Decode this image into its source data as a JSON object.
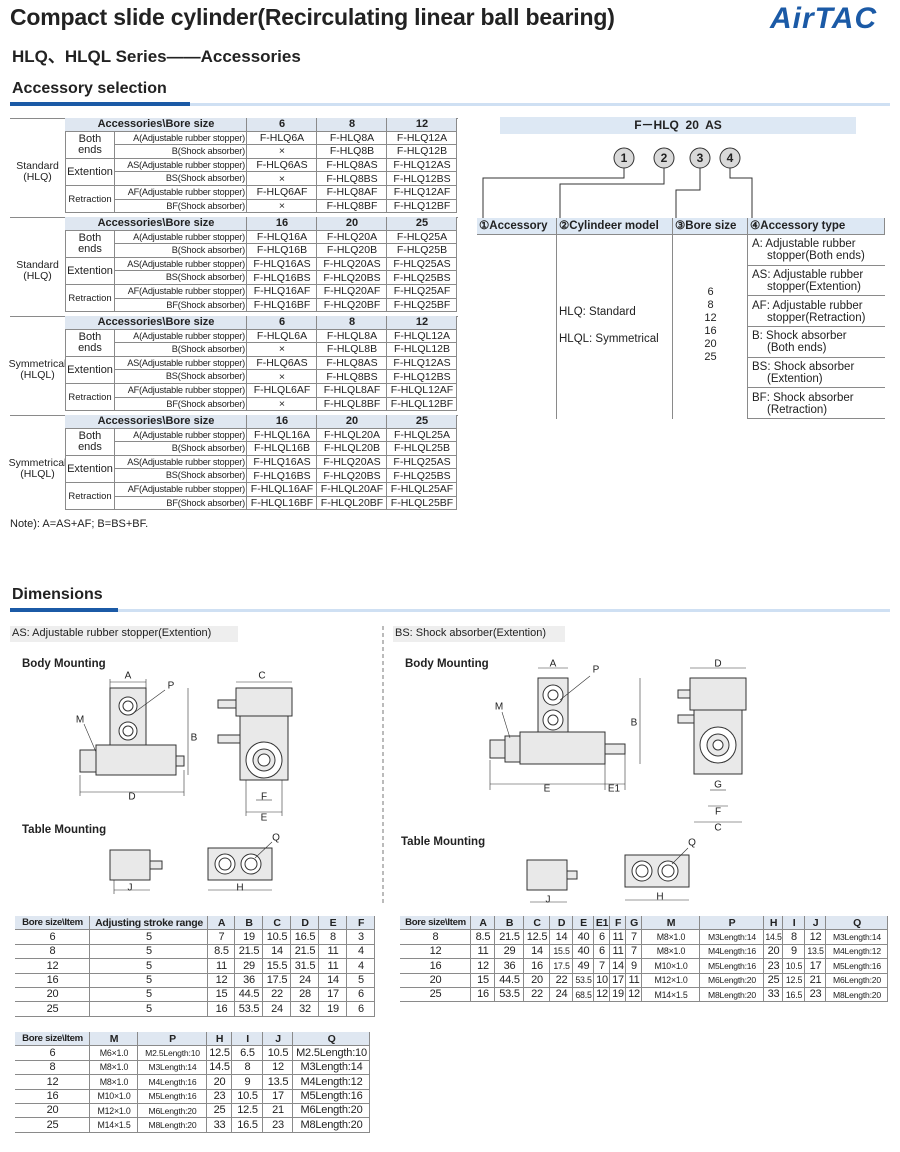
{
  "header": {
    "title": "Compact slide cylinder(Recirculating linear ball bearing)",
    "subtitle": "HLQ、HLQL Series——Accessories",
    "logo": "AirTAC"
  },
  "selection": {
    "heading": "Accessory selection",
    "blocks": [
      {
        "label": [
          "Standard",
          "(HLQ)"
        ],
        "header": [
          "Accessories\\Bore size",
          "6",
          "8",
          "12"
        ],
        "groups": [
          {
            "name": "Both ends",
            "rows": [
              [
                "A(Adjustable rubber stopper)",
                "F-HLQ6A",
                "F-HLQ8A",
                "F-HLQ12A"
              ],
              [
                "B(Shock absorber)",
                "×",
                "F-HLQ8B",
                "F-HLQ12B"
              ]
            ]
          },
          {
            "name": "Extention",
            "rows": [
              [
                "AS(Adjustable rubber stopper)",
                "F-HLQ6AS",
                "F-HLQ8AS",
                "F-HLQ12AS"
              ],
              [
                "BS(Shock absorber)",
                "×",
                "F-HLQ8BS",
                "F-HLQ12BS"
              ]
            ]
          },
          {
            "name": "Retraction",
            "rows": [
              [
                "AF(Adjustable rubber stopper)",
                "F-HLQ6AF",
                "F-HLQ8AF",
                "F-HLQ12AF"
              ],
              [
                "BF(Shock absorber)",
                "×",
                "F-HLQ8BF",
                "F-HLQ12BF"
              ]
            ]
          }
        ]
      },
      {
        "label": [
          "Standard",
          "(HLQ)"
        ],
        "header": [
          "Accessories\\Bore size",
          "16",
          "20",
          "25"
        ],
        "groups": [
          {
            "name": "Both ends",
            "rows": [
              [
                "A(Adjustable rubber stopper)",
                "F-HLQ16A",
                "F-HLQ20A",
                "F-HLQ25A"
              ],
              [
                "B(Shock absorber)",
                "F-HLQ16B",
                "F-HLQ20B",
                "F-HLQ25B"
              ]
            ]
          },
          {
            "name": "Extention",
            "rows": [
              [
                "AS(Adjustable rubber stopper)",
                "F-HLQ16AS",
                "F-HLQ20AS",
                "F-HLQ25AS"
              ],
              [
                "BS(Shock absorber)",
                "F-HLQ16BS",
                "F-HLQ20BS",
                "F-HLQ25BS"
              ]
            ]
          },
          {
            "name": "Retraction",
            "rows": [
              [
                "AF(Adjustable rubber stopper)",
                "F-HLQ16AF",
                "F-HLQ20AF",
                "F-HLQ25AF"
              ],
              [
                "BF(Shock absorber)",
                "F-HLQ16BF",
                "F-HLQ20BF",
                "F-HLQ25BF"
              ]
            ]
          }
        ]
      },
      {
        "label": [
          "Symmetrical",
          "(HLQL)"
        ],
        "header": [
          "Accessories\\Bore size",
          "6",
          "8",
          "12"
        ],
        "groups": [
          {
            "name": "Both ends",
            "rows": [
              [
                "A(Adjustable rubber stopper)",
                "F-HLQL6A",
                "F-HLQL8A",
                "F-HLQL12A"
              ],
              [
                "B(Shock absorber)",
                "×",
                "F-HLQL8B",
                "F-HLQL12B"
              ]
            ]
          },
          {
            "name": "Extention",
            "rows": [
              [
                "AS(Adjustable rubber stopper)",
                "F-HLQ6AS",
                "F-HLQ8AS",
                "F-HLQ12AS"
              ],
              [
                "BS(Shock absorber)",
                "×",
                "F-HLQ8BS",
                "F-HLQ12BS"
              ]
            ]
          },
          {
            "name": "Retraction",
            "rows": [
              [
                "AF(Adjustable rubber stopper)",
                "F-HLQL6AF",
                "F-HLQL8AF",
                "F-HLQL12AF"
              ],
              [
                "BF(Shock absorber)",
                "×",
                "F-HLQL8BF",
                "F-HLQL12BF"
              ]
            ]
          }
        ]
      },
      {
        "label": [
          "Symmetrical",
          "(HLQL)"
        ],
        "header": [
          "Accessories\\Bore size",
          "16",
          "20",
          "25"
        ],
        "groups": [
          {
            "name": "Both ends",
            "rows": [
              [
                "A(Adjustable rubber stopper)",
                "F-HLQL16A",
                "F-HLQL20A",
                "F-HLQL25A"
              ],
              [
                "B(Shock absorber)",
                "F-HLQL16B",
                "F-HLQL20B",
                "F-HLQL25B"
              ]
            ]
          },
          {
            "name": "Extention",
            "rows": [
              [
                "AS(Adjustable rubber stopper)",
                "F-HLQ16AS",
                "F-HLQ20AS",
                "F-HLQ25AS"
              ],
              [
                "BS(Shock absorber)",
                "F-HLQ16BS",
                "F-HLQ20BS",
                "F-HLQ25BS"
              ]
            ]
          },
          {
            "name": "Retraction",
            "rows": [
              [
                "AF(Adjustable rubber stopper)",
                "F-HLQL16AF",
                "F-HLQL20AF",
                "F-HLQL25AF"
              ],
              [
                "BF(Shock absorber)",
                "F-HLQL16BF",
                "F-HLQL20BF",
                "F-HLQL25BF"
              ]
            ]
          }
        ]
      }
    ],
    "note": "Note): A=AS+AF; B=BS+BF."
  },
  "order_code": {
    "code": "F－HLQ  20  AS",
    "markers": [
      "1",
      "2",
      "3",
      "4"
    ],
    "headers": [
      "①Accessory",
      "②Cylindeer model",
      "③Bore size",
      "④Accessory type"
    ],
    "models": [
      "HLQ: Standard",
      "HLQL: Symmetrical"
    ],
    "bore_sizes": [
      "6",
      "8",
      "12",
      "16",
      "20",
      "25"
    ],
    "types": [
      [
        "A: Adjustable rubber",
        "stopper(Both ends)"
      ],
      [
        "AS: Adjustable rubber",
        "stopper(Extention)"
      ],
      [
        "AF: Adjustable rubber",
        "stopper(Retraction)"
      ],
      [
        "B: Shock absorber",
        "(Both ends)"
      ],
      [
        "BS: Shock absorber",
        "(Extention)"
      ],
      [
        "BF: Shock absorber",
        "(Retraction)"
      ]
    ]
  },
  "dimensions": {
    "heading": "Dimensions",
    "panels": [
      {
        "title": "AS: Adjustable rubber stopper(Extention)",
        "body_label": "Body Mounting",
        "table_label": "Table Mounting",
        "body_dims": [
          "A",
          "P",
          "M",
          "B",
          "D",
          "C",
          "F",
          "E"
        ],
        "table_dims": [
          "J",
          "Q",
          "H"
        ],
        "tables": [
          {
            "header": [
              "Bore size\\Item",
              "Adjusting stroke range",
              "A",
              "B",
              "C",
              "D",
              "E",
              "F"
            ],
            "rows": [
              [
                "6",
                "5",
                "7",
                "19",
                "10.5",
                "16.5",
                "8",
                "3"
              ],
              [
                "8",
                "5",
                "8.5",
                "21.5",
                "14",
                "21.5",
                "11",
                "4"
              ],
              [
                "12",
                "5",
                "11",
                "29",
                "15.5",
                "31.5",
                "11",
                "4"
              ],
              [
                "16",
                "5",
                "12",
                "36",
                "17.5",
                "24",
                "14",
                "5"
              ],
              [
                "20",
                "5",
                "15",
                "44.5",
                "22",
                "28",
                "17",
                "6"
              ],
              [
                "25",
                "5",
                "16",
                "53.5",
                "24",
                "32",
                "19",
                "6"
              ]
            ]
          },
          {
            "header": [
              "Bore size\\Item",
              "M",
              "P",
              "H",
              "I",
              "J",
              "Q"
            ],
            "rows": [
              [
                "6",
                "M6×1.0",
                "M2.5Length:10",
                "12.5",
                "6.5",
                "10.5",
                "M2.5Length:10"
              ],
              [
                "8",
                "M8×1.0",
                "M3Length:14",
                "14.5",
                "8",
                "12",
                "M3Length:14"
              ],
              [
                "12",
                "M8×1.0",
                "M4Length:16",
                "20",
                "9",
                "13.5",
                "M4Length:12"
              ],
              [
                "16",
                "M10×1.0",
                "M5Length:16",
                "23",
                "10.5",
                "17",
                "M5Length:16"
              ],
              [
                "20",
                "M12×1.0",
                "M6Length:20",
                "25",
                "12.5",
                "21",
                "M6Length:20"
              ],
              [
                "25",
                "M14×1.5",
                "M8Length:20",
                "33",
                "16.5",
                "23",
                "M8Length:20"
              ]
            ]
          }
        ]
      },
      {
        "title": "BS: Shock absorber(Extention)",
        "body_label": "Body Mounting",
        "table_label": "Table Mounting",
        "body_dims": [
          "A",
          "P",
          "M",
          "B",
          "E",
          "E1",
          "D",
          "G",
          "F",
          "C"
        ],
        "table_dims": [
          "J",
          "Q",
          "H"
        ],
        "tables": [
          {
            "header": [
              "Bore size\\Item",
              "A",
              "B",
              "C",
              "D",
              "E",
              "E1",
              "F",
              "G",
              "M",
              "P",
              "H",
              "I",
              "J",
              "Q"
            ],
            "rows": [
              [
                "8",
                "8.5",
                "21.5",
                "12.5",
                "14",
                "40",
                "6",
                "11",
                "7",
                "M8×1.0",
                "M3Length:14",
                "14.5",
                "8",
                "12",
                "M3Length:14"
              ],
              [
                "12",
                "11",
                "29",
                "14",
                "15.5",
                "40",
                "6",
                "11",
                "7",
                "M8×1.0",
                "M4Length:16",
                "20",
                "9",
                "13.5",
                "M4Length:12"
              ],
              [
                "16",
                "12",
                "36",
                "16",
                "17.5",
                "49",
                "7",
                "14",
                "9",
                "M10×1.0",
                "M5Length:16",
                "23",
                "10.5",
                "17",
                "M5Length:16"
              ],
              [
                "20",
                "15",
                "44.5",
                "20",
                "22",
                "53.5",
                "10",
                "17",
                "11",
                "M12×1.0",
                "M6Length:20",
                "25",
                "12.5",
                "21",
                "M6Length:20"
              ],
              [
                "25",
                "16",
                "53.5",
                "22",
                "24",
                "68.5",
                "12",
                "19",
                "12",
                "M14×1.5",
                "M8Length:20",
                "33",
                "16.5",
                "23",
                "M8Length:20"
              ]
            ]
          }
        ]
      }
    ]
  }
}
